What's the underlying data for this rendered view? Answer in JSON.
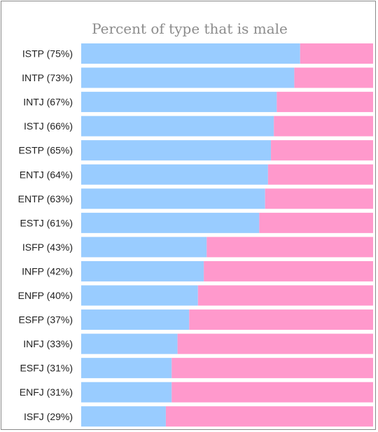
{
  "chart_data": {
    "type": "bar",
    "stacked": true,
    "orientation": "horizontal",
    "title": "Percent of type that is male",
    "xlim": [
      0,
      100
    ],
    "grid": false,
    "legend": "none",
    "categories": [
      "ISTP (75%)",
      "INTP (73%)",
      "INTJ (67%)",
      "ISTJ (66%)",
      "ESTP (65%)",
      "ENTJ (64%)",
      "ENTP (63%)",
      "ESTJ (61%)",
      "ISFP (43%)",
      "INFP (42%)",
      "ENFP (40%)",
      "ESFP (37%)",
      "INFJ (33%)",
      "ESFJ (31%)",
      "ENFJ (31%)",
      "ISFJ (29%)"
    ],
    "series": [
      {
        "values": [
          75,
          73,
          67,
          66,
          65,
          64,
          63,
          61,
          43,
          42,
          40,
          37,
          33,
          31,
          31,
          29
        ],
        "color": "#99ccff"
      },
      {
        "values": [
          25,
          27,
          33,
          34,
          35,
          36,
          37,
          39,
          57,
          58,
          60,
          63,
          67,
          69,
          69,
          71
        ],
        "color": "#ff99cc"
      }
    ]
  }
}
